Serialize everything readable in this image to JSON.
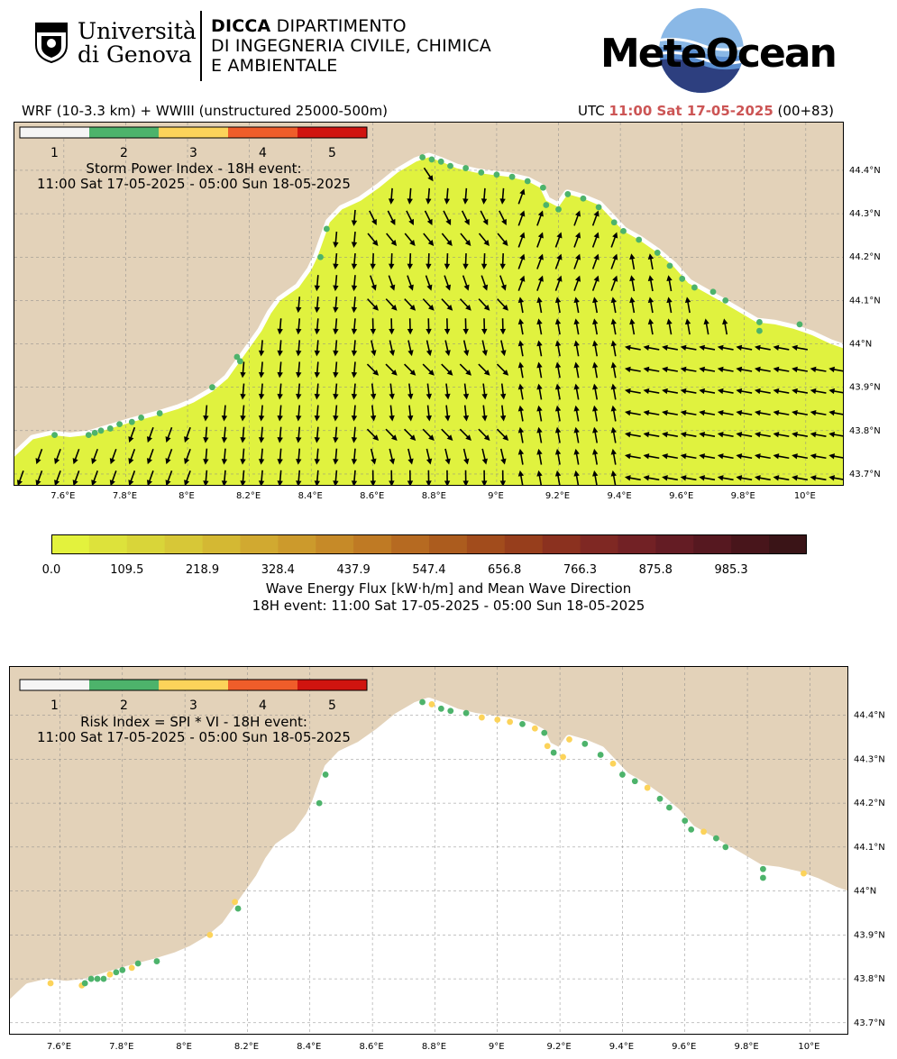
{
  "header": {
    "university_line1": "Università",
    "university_line2": "di Genova",
    "dept_bold": "DICCA",
    "dept_line1_rest": " DIPARTIMENTO",
    "dept_line2": "DI INGEGNERIA CIVILE, CHIMICA",
    "dept_line3": "E AMBIENTALE",
    "brand": "MeteOcean",
    "logo_icon": "unige-shield-icon",
    "brand_icon": "meteocean-globe-icon"
  },
  "run_info": {
    "model": "WRF (10-3.3 km) + WWIII (unstructured 25000-500m)",
    "utc_prefix": "UTC",
    "utc_time": "11:00 Sat 17-05-2025",
    "forecast_step": "(00+83)"
  },
  "colors": {
    "land": "#e3d2b9",
    "sea_flux_low": "#e0f23f",
    "coast_white": "#ffffff",
    "utc_accent": "#cc5555",
    "class_colors": [
      "#f5f5f5",
      "#4db36b",
      "#fcd35a",
      "#ef5d2a",
      "#d0140f"
    ]
  },
  "map_axes": {
    "lon_labels": [
      "7.6°E",
      "7.8°E",
      "8°E",
      "8.2°E",
      "8.4°E",
      "8.6°E",
      "8.8°E",
      "9°E",
      "9.2°E",
      "9.4°E",
      "9.6°E",
      "9.8°E",
      "10°E"
    ],
    "lon_values": [
      7.6,
      7.8,
      8.0,
      8.2,
      8.4,
      8.6,
      8.8,
      9.0,
      9.2,
      9.4,
      9.6,
      9.8,
      10.0
    ],
    "lat_labels": [
      "44.4°N",
      "44.3°N",
      "44.2°N",
      "44.1°N",
      "44°N",
      "43.9°N",
      "43.8°N",
      "43.7°N"
    ],
    "lat_values": [
      44.4,
      44.3,
      44.2,
      44.1,
      44.0,
      43.9,
      43.8,
      43.7
    ],
    "lon_range": [
      7.44,
      10.12
    ],
    "lat_range": [
      43.675,
      44.51
    ],
    "grid": true
  },
  "class_legend": {
    "ticks": [
      "1",
      "2",
      "3",
      "4",
      "5"
    ]
  },
  "panel_spi": {
    "title_line1": "Storm Power Index - 18H event:",
    "title_line2": "11:00 Sat 17-05-2025 - 05:00 Sun 18-05-2025"
  },
  "flux_colorbar": {
    "tick_labels": [
      "0.0",
      "109.5",
      "218.9",
      "328.4",
      "437.9",
      "547.4",
      "656.8",
      "766.3",
      "875.8",
      "985.3"
    ],
    "range": [
      0,
      1095
    ],
    "colors": [
      "#e3f23d",
      "#dde23b",
      "#d9d539",
      "#d7c737",
      "#d4b833",
      "#d1a930",
      "#cc9a2c",
      "#c68a28",
      "#bf7a24",
      "#b66a21",
      "#ac5c1e",
      "#a24c1c",
      "#973e1c",
      "#8b311f",
      "#7f2823",
      "#722125",
      "#641c24",
      "#561820",
      "#48151b",
      "#3a1417"
    ],
    "title_line1": "Wave Energy Flux [kW·h/m] and Mean Wave Direction",
    "title_line2": "18H event: 11:00 Sat 17-05-2025 - 05:00 Sun 18-05-2025"
  },
  "panel_risk": {
    "title_line1": "Risk Index = SPI * VI - 18H event:",
    "title_line2": "11:00 Sat 17-05-2025 - 05:00 Sun 18-05-2025"
  },
  "coastline": [
    [
      7.44,
      43.74
    ],
    [
      7.5,
      43.78
    ],
    [
      7.56,
      43.79
    ],
    [
      7.62,
      43.785
    ],
    [
      7.68,
      43.79
    ],
    [
      7.75,
      43.805
    ],
    [
      7.82,
      43.82
    ],
    [
      7.9,
      43.835
    ],
    [
      7.97,
      43.85
    ],
    [
      8.02,
      43.865
    ],
    [
      8.08,
      43.89
    ],
    [
      8.13,
      43.92
    ],
    [
      8.17,
      43.96
    ],
    [
      8.2,
      43.99
    ],
    [
      8.24,
      44.03
    ],
    [
      8.27,
      44.07
    ],
    [
      8.3,
      44.1
    ],
    [
      8.36,
      44.13
    ],
    [
      8.4,
      44.17
    ],
    [
      8.42,
      44.2
    ],
    [
      8.44,
      44.24
    ],
    [
      8.46,
      44.28
    ],
    [
      8.5,
      44.31
    ],
    [
      8.56,
      44.33
    ],
    [
      8.62,
      44.36
    ],
    [
      8.68,
      44.395
    ],
    [
      8.74,
      44.42
    ],
    [
      8.78,
      44.43
    ],
    [
      8.82,
      44.42
    ],
    [
      8.87,
      44.405
    ],
    [
      8.93,
      44.395
    ],
    [
      8.98,
      44.39
    ],
    [
      9.04,
      44.385
    ],
    [
      9.1,
      44.375
    ],
    [
      9.14,
      44.36
    ],
    [
      9.16,
      44.33
    ],
    [
      9.2,
      44.315
    ],
    [
      9.23,
      44.345
    ],
    [
      9.28,
      44.335
    ],
    [
      9.33,
      44.32
    ],
    [
      9.37,
      44.29
    ],
    [
      9.41,
      44.26
    ],
    [
      9.46,
      44.24
    ],
    [
      9.52,
      44.21
    ],
    [
      9.57,
      44.18
    ],
    [
      9.62,
      44.14
    ],
    [
      9.67,
      44.12
    ],
    [
      9.72,
      44.1
    ],
    [
      9.78,
      44.075
    ],
    [
      9.84,
      44.05
    ],
    [
      9.9,
      44.045
    ],
    [
      9.96,
      44.035
    ],
    [
      10.02,
      44.02
    ],
    [
      10.08,
      44.0
    ],
    [
      10.12,
      43.99
    ]
  ],
  "spi_points": [
    {
      "lon": 7.57,
      "lat": 43.79,
      "c": 2
    },
    {
      "lon": 7.68,
      "lat": 43.79,
      "c": 2
    },
    {
      "lon": 7.7,
      "lat": 43.795,
      "c": 2
    },
    {
      "lon": 7.72,
      "lat": 43.8,
      "c": 2
    },
    {
      "lon": 7.75,
      "lat": 43.805,
      "c": 2
    },
    {
      "lon": 7.78,
      "lat": 43.815,
      "c": 2
    },
    {
      "lon": 7.82,
      "lat": 43.82,
      "c": 2
    },
    {
      "lon": 7.85,
      "lat": 43.83,
      "c": 2
    },
    {
      "lon": 7.91,
      "lat": 43.84,
      "c": 2
    },
    {
      "lon": 8.08,
      "lat": 43.9,
      "c": 2
    },
    {
      "lon": 8.16,
      "lat": 43.97,
      "c": 2
    },
    {
      "lon": 8.17,
      "lat": 43.96,
      "c": 2
    },
    {
      "lon": 8.43,
      "lat": 44.2,
      "c": 2
    },
    {
      "lon": 8.45,
      "lat": 44.265,
      "c": 2
    },
    {
      "lon": 8.76,
      "lat": 44.43,
      "c": 2
    },
    {
      "lon": 8.79,
      "lat": 44.425,
      "c": 2
    },
    {
      "lon": 8.82,
      "lat": 44.42,
      "c": 2
    },
    {
      "lon": 8.85,
      "lat": 44.41,
      "c": 2
    },
    {
      "lon": 8.9,
      "lat": 44.405,
      "c": 2
    },
    {
      "lon": 8.95,
      "lat": 44.395,
      "c": 2
    },
    {
      "lon": 9.0,
      "lat": 44.39,
      "c": 2
    },
    {
      "lon": 9.05,
      "lat": 44.385,
      "c": 2
    },
    {
      "lon": 9.1,
      "lat": 44.375,
      "c": 2
    },
    {
      "lon": 9.15,
      "lat": 44.36,
      "c": 2
    },
    {
      "lon": 9.16,
      "lat": 44.32,
      "c": 2
    },
    {
      "lon": 9.2,
      "lat": 44.31,
      "c": 2
    },
    {
      "lon": 9.23,
      "lat": 44.345,
      "c": 2
    },
    {
      "lon": 9.28,
      "lat": 44.335,
      "c": 2
    },
    {
      "lon": 9.33,
      "lat": 44.315,
      "c": 2
    },
    {
      "lon": 9.38,
      "lat": 44.28,
      "c": 2
    },
    {
      "lon": 9.41,
      "lat": 44.26,
      "c": 2
    },
    {
      "lon": 9.46,
      "lat": 44.24,
      "c": 2
    },
    {
      "lon": 9.52,
      "lat": 44.21,
      "c": 2
    },
    {
      "lon": 9.56,
      "lat": 44.18,
      "c": 2
    },
    {
      "lon": 9.6,
      "lat": 44.15,
      "c": 2
    },
    {
      "lon": 9.64,
      "lat": 44.13,
      "c": 2
    },
    {
      "lon": 9.7,
      "lat": 44.12,
      "c": 2
    },
    {
      "lon": 9.74,
      "lat": 44.1,
      "c": 2
    },
    {
      "lon": 9.85,
      "lat": 44.05,
      "c": 2
    },
    {
      "lon": 9.85,
      "lat": 44.03,
      "c": 2
    },
    {
      "lon": 9.98,
      "lat": 44.045,
      "c": 2
    }
  ],
  "risk_points": [
    {
      "lon": 7.57,
      "lat": 43.79,
      "c": 3
    },
    {
      "lon": 7.67,
      "lat": 43.785,
      "c": 3
    },
    {
      "lon": 7.68,
      "lat": 43.79,
      "c": 2
    },
    {
      "lon": 7.7,
      "lat": 43.8,
      "c": 2
    },
    {
      "lon": 7.72,
      "lat": 43.8,
      "c": 2
    },
    {
      "lon": 7.74,
      "lat": 43.8,
      "c": 2
    },
    {
      "lon": 7.76,
      "lat": 43.81,
      "c": 3
    },
    {
      "lon": 7.78,
      "lat": 43.815,
      "c": 2
    },
    {
      "lon": 7.8,
      "lat": 43.82,
      "c": 2
    },
    {
      "lon": 7.83,
      "lat": 43.825,
      "c": 3
    },
    {
      "lon": 7.85,
      "lat": 43.835,
      "c": 2
    },
    {
      "lon": 7.91,
      "lat": 43.84,
      "c": 2
    },
    {
      "lon": 8.08,
      "lat": 43.9,
      "c": 3
    },
    {
      "lon": 8.16,
      "lat": 43.975,
      "c": 3
    },
    {
      "lon": 8.17,
      "lat": 43.96,
      "c": 2
    },
    {
      "lon": 8.43,
      "lat": 44.2,
      "c": 2
    },
    {
      "lon": 8.45,
      "lat": 44.265,
      "c": 2
    },
    {
      "lon": 8.76,
      "lat": 44.43,
      "c": 2
    },
    {
      "lon": 8.79,
      "lat": 44.425,
      "c": 3
    },
    {
      "lon": 8.82,
      "lat": 44.415,
      "c": 2
    },
    {
      "lon": 8.85,
      "lat": 44.41,
      "c": 2
    },
    {
      "lon": 8.9,
      "lat": 44.405,
      "c": 2
    },
    {
      "lon": 8.95,
      "lat": 44.395,
      "c": 3
    },
    {
      "lon": 9.0,
      "lat": 44.39,
      "c": 3
    },
    {
      "lon": 9.04,
      "lat": 44.385,
      "c": 3
    },
    {
      "lon": 9.08,
      "lat": 44.38,
      "c": 2
    },
    {
      "lon": 9.12,
      "lat": 44.37,
      "c": 3
    },
    {
      "lon": 9.15,
      "lat": 44.36,
      "c": 2
    },
    {
      "lon": 9.16,
      "lat": 44.33,
      "c": 3
    },
    {
      "lon": 9.18,
      "lat": 44.315,
      "c": 2
    },
    {
      "lon": 9.21,
      "lat": 44.305,
      "c": 3
    },
    {
      "lon": 9.23,
      "lat": 44.345,
      "c": 3
    },
    {
      "lon": 9.28,
      "lat": 44.335,
      "c": 2
    },
    {
      "lon": 9.33,
      "lat": 44.31,
      "c": 2
    },
    {
      "lon": 9.37,
      "lat": 44.29,
      "c": 3
    },
    {
      "lon": 9.4,
      "lat": 44.265,
      "c": 2
    },
    {
      "lon": 9.44,
      "lat": 44.25,
      "c": 2
    },
    {
      "lon": 9.48,
      "lat": 44.235,
      "c": 3
    },
    {
      "lon": 9.52,
      "lat": 44.21,
      "c": 2
    },
    {
      "lon": 9.55,
      "lat": 44.19,
      "c": 2
    },
    {
      "lon": 9.6,
      "lat": 44.16,
      "c": 2
    },
    {
      "lon": 9.62,
      "lat": 44.14,
      "c": 2
    },
    {
      "lon": 9.66,
      "lat": 44.135,
      "c": 3
    },
    {
      "lon": 9.7,
      "lat": 44.12,
      "c": 2
    },
    {
      "lon": 9.73,
      "lat": 44.1,
      "c": 2
    },
    {
      "lon": 9.85,
      "lat": 44.05,
      "c": 2
    },
    {
      "lon": 9.85,
      "lat": 44.03,
      "c": 2
    },
    {
      "lon": 9.98,
      "lat": 44.04,
      "c": 3
    }
  ]
}
